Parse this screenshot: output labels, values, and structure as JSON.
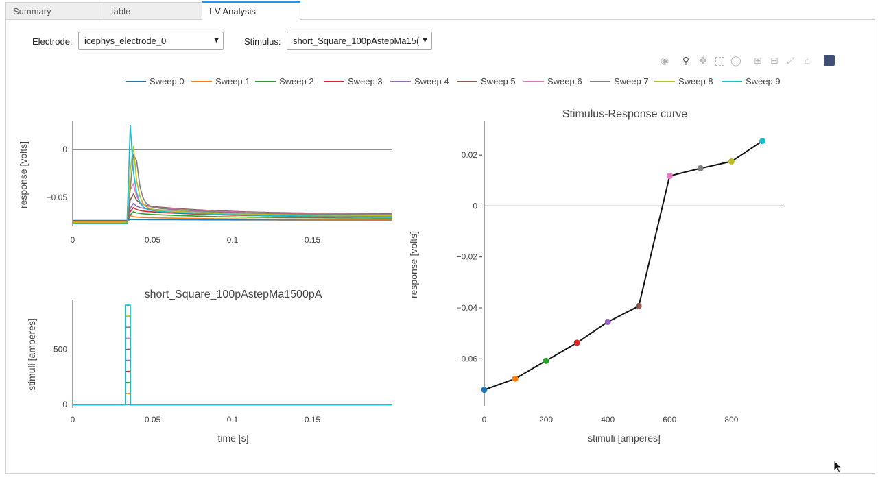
{
  "tabs": [
    {
      "label": "Summary"
    },
    {
      "label": "table"
    },
    {
      "label": "I-V Analysis"
    }
  ],
  "controls": {
    "electrode_label": "Electrode:",
    "electrode_value": "icephys_electrode_0",
    "stimulus_label": "Stimulus:",
    "stimulus_value": "short_Square_100pAstepMa15("
  },
  "modebar": [
    "camera-icon",
    "zoom-icon",
    "pan-icon",
    "box-select-icon",
    "lasso-icon",
    "zoom-in-icon",
    "zoom-out-icon",
    "autoscale-icon",
    "home-icon",
    "plotly-logo-icon"
  ],
  "legend": [
    {
      "name": "Sweep 0",
      "color": "#1f77b4"
    },
    {
      "name": "Sweep 1",
      "color": "#ff7f0e"
    },
    {
      "name": "Sweep 2",
      "color": "#2ca02c"
    },
    {
      "name": "Sweep 3",
      "color": "#d62728"
    },
    {
      "name": "Sweep 4",
      "color": "#9467bd"
    },
    {
      "name": "Sweep 5",
      "color": "#8c564b"
    },
    {
      "name": "Sweep 6",
      "color": "#e377c2"
    },
    {
      "name": "Sweep 7",
      "color": "#7f7f7f"
    },
    {
      "name": "Sweep 8",
      "color": "#bcbd22"
    },
    {
      "name": "Sweep 9",
      "color": "#17becf"
    }
  ],
  "chart_data": [
    {
      "type": "line",
      "title": "",
      "ylabel": "response [volts]",
      "xlabel": "",
      "xlim": [
        0,
        0.2
      ],
      "ylim": [
        -0.08,
        0.03
      ],
      "xticks": [
        "0",
        "0.05",
        "0.1",
        "0.15"
      ],
      "yticks": [
        "0",
        "−0.05"
      ],
      "stim_onset": 0.034,
      "series": [
        {
          "baseline": -0.074,
          "plateau": -0.073,
          "peak": -0.073,
          "peak_t": 0.036
        },
        {
          "baseline": -0.075,
          "plateau": -0.0705,
          "peak": -0.069,
          "peak_t": 0.036
        },
        {
          "baseline": -0.076,
          "plateau": -0.0665,
          "peak": -0.064,
          "peak_t": 0.037
        },
        {
          "baseline": -0.076,
          "plateau": -0.0635,
          "peak": -0.059,
          "peak_t": 0.037
        },
        {
          "baseline": -0.076,
          "plateau": -0.0605,
          "peak": -0.054,
          "peak_t": 0.037
        },
        {
          "baseline": -0.076,
          "plateau": -0.057,
          "peak": -0.041,
          "peak_t": 0.037
        },
        {
          "baseline": -0.076,
          "plateau": -0.058,
          "peak": -0.025,
          "peak_t": 0.037
        },
        {
          "baseline": -0.076,
          "plateau": -0.059,
          "peak": 0.012,
          "peak_t": 0.039
        },
        {
          "baseline": -0.076,
          "plateau": -0.061,
          "peak": 0.018,
          "peak_t": 0.0375
        },
        {
          "baseline": -0.077,
          "plateau": -0.062,
          "peak": 0.025,
          "peak_t": 0.036
        }
      ]
    },
    {
      "type": "line",
      "title": "short_Square_100pAstepMa1500pA",
      "ylabel": "stimuli [amperes]",
      "xlabel": "time [s]",
      "xlim": [
        0,
        0.2
      ],
      "ylim": [
        -30,
        950
      ],
      "xticks": [
        "0",
        "0.05",
        "0.1",
        "0.15"
      ],
      "yticks": [
        "0",
        "500"
      ],
      "pulse_start": 0.033,
      "pulse_end": 0.036,
      "amplitudes": [
        0,
        100,
        200,
        300,
        400,
        500,
        600,
        700,
        800,
        900
      ]
    },
    {
      "type": "scatter",
      "title": "Stimulus-Response curve",
      "ylabel": "response [volts]",
      "xlabel": "stimuli [amperes]",
      "xlim": [
        0,
        970
      ],
      "ylim": [
        -0.0785,
        0.0335
      ],
      "xticks": [
        "0",
        "200",
        "400",
        "600",
        "800"
      ],
      "yticks": [
        "0.02",
        "0",
        "−0.02",
        "−0.04",
        "−0.06"
      ],
      "x": [
        0,
        100,
        200,
        300,
        400,
        500,
        600,
        700,
        800,
        900
      ],
      "y": [
        -0.0722,
        -0.0678,
        -0.0608,
        -0.0537,
        -0.0455,
        -0.0393,
        0.0118,
        0.0148,
        0.0175,
        0.0255
      ]
    }
  ]
}
